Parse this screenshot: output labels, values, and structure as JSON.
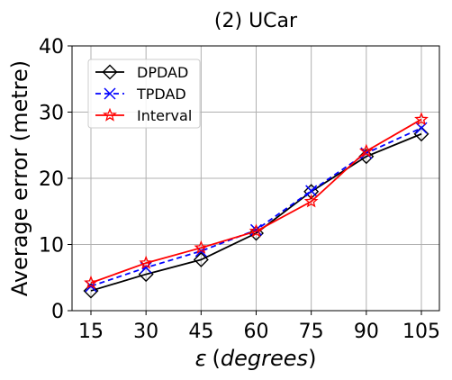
{
  "chart_data": {
    "type": "line",
    "title": "(2) UCar",
    "xlabel_symbol": "ε",
    "xlabel_text": "(degrees)",
    "ylabel": "Average error (metre)",
    "categories": [
      "15",
      "30",
      "45",
      "60",
      "75",
      "90",
      "105"
    ],
    "ylim": [
      0,
      40
    ],
    "yticks": [
      "0",
      "10",
      "20",
      "30",
      "40"
    ],
    "grid": true,
    "legend_position": "upper-left",
    "series": [
      {
        "name": "DPDAD",
        "color": "#000000",
        "dash": "solid",
        "marker": "diamond",
        "values": [
          3.0,
          5.5,
          7.7,
          11.7,
          18.0,
          23.3,
          26.7
        ]
      },
      {
        "name": "TPDAD",
        "color": "#0000ff",
        "dash": "dashed",
        "marker": "x",
        "values": [
          3.7,
          6.5,
          9.0,
          12.2,
          18.1,
          23.8,
          27.6
        ]
      },
      {
        "name": "Interval",
        "color": "#ff0000",
        "dash": "solid",
        "marker": "star",
        "values": [
          4.2,
          7.2,
          9.5,
          12.0,
          16.5,
          24.1,
          28.9
        ]
      }
    ]
  }
}
